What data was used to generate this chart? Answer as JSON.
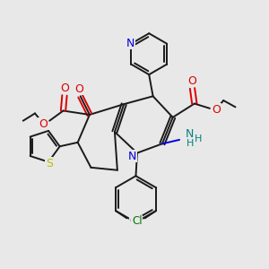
{
  "bg_color": "#e8e8e8",
  "bond_color": "#1a1a1a",
  "bond_lw": 1.4,
  "atom_colors": {
    "N": "#0000dd",
    "O": "#dd0000",
    "S": "#bbbb00",
    "Cl": "#007700",
    "NH": "#008080",
    "C": "#1a1a1a"
  },
  "font_size": 8.5
}
